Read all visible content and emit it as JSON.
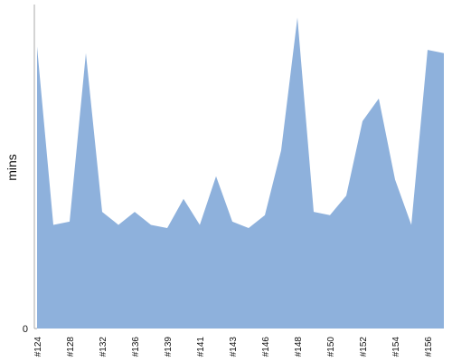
{
  "chart_data": {
    "type": "area",
    "y_label": "mins",
    "categories": [
      "#124",
      null,
      "#128",
      null,
      "#132",
      null,
      "#136",
      null,
      "#139",
      null,
      "#141",
      null,
      "#143",
      null,
      "#146",
      null,
      "#148",
      null,
      "#150",
      null,
      "#152",
      null,
      "#154",
      null,
      "#156",
      null
    ],
    "values": [
      87,
      32,
      33,
      85,
      36,
      32,
      36,
      32,
      31,
      40,
      32,
      47,
      33,
      31,
      35,
      55,
      96,
      36,
      35,
      41,
      64,
      71,
      46,
      32,
      86,
      85
    ],
    "color": "#8eb1dc",
    "ylim": [
      0,
      100
    ],
    "yticks": [
      0
    ]
  }
}
